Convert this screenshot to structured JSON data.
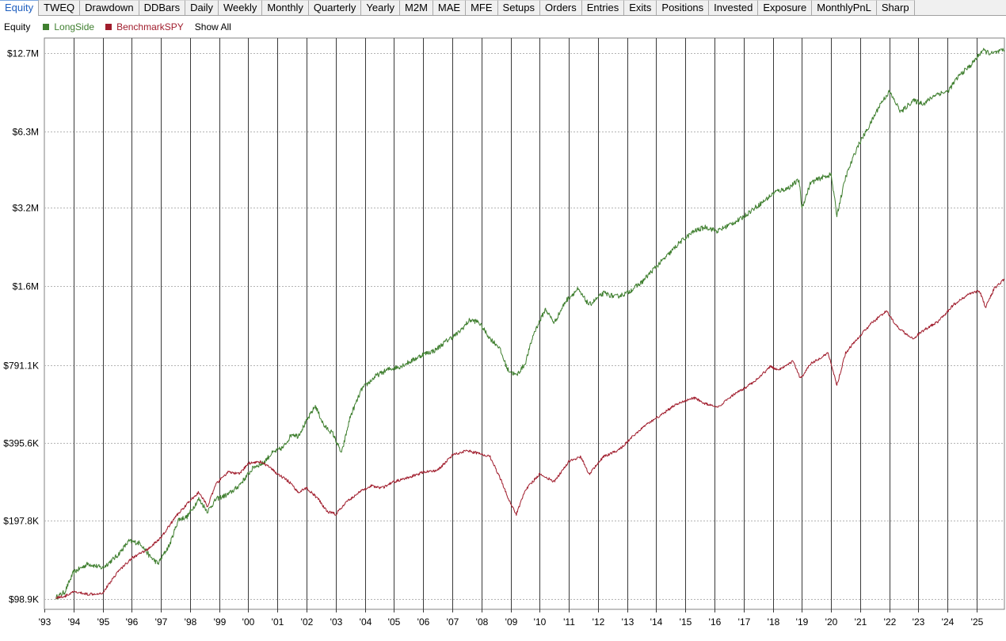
{
  "tabs": [
    {
      "label": "Equity",
      "active": true
    },
    {
      "label": "TWEQ"
    },
    {
      "label": "Drawdown"
    },
    {
      "label": "DDBars"
    },
    {
      "label": "Daily"
    },
    {
      "label": "Weekly"
    },
    {
      "label": "Monthly"
    },
    {
      "label": "Quarterly"
    },
    {
      "label": "Yearly"
    },
    {
      "label": "M2M"
    },
    {
      "label": "MAE"
    },
    {
      "label": "MFE"
    },
    {
      "label": "Setups"
    },
    {
      "label": "Orders"
    },
    {
      "label": "Entries"
    },
    {
      "label": "Exits"
    },
    {
      "label": "Positions"
    },
    {
      "label": "Invested"
    },
    {
      "label": "Exposure"
    },
    {
      "label": "MonthlyPnL"
    },
    {
      "label": "Sharp"
    }
  ],
  "legend": {
    "title": "Equity",
    "items": [
      {
        "label": "LongSide",
        "color": "#3f7f2f"
      },
      {
        "label": "BenchmarkSPY",
        "color": "#a01c2c"
      }
    ],
    "show_all": "Show All"
  },
  "chart_data": {
    "type": "line",
    "yscale": "log",
    "ylim": [
      90000,
      14500000
    ],
    "xlim": [
      1993.0,
      2025.95
    ],
    "yticks": [
      {
        "value": 98900,
        "label": "$98.9K"
      },
      {
        "value": 197800,
        "label": "$197.8K"
      },
      {
        "value": 395600,
        "label": "$395.6K"
      },
      {
        "value": 791100,
        "label": "$791.1K"
      },
      {
        "value": 1600000,
        "label": "$1.6M"
      },
      {
        "value": 3200000,
        "label": "$3.2M"
      },
      {
        "value": 6300000,
        "label": "$6.3M"
      },
      {
        "value": 12700000,
        "label": "$12.7M"
      }
    ],
    "xticks": [
      {
        "value": 1993,
        "label": "'93"
      },
      {
        "value": 1994,
        "label": "'94"
      },
      {
        "value": 1995,
        "label": "'95"
      },
      {
        "value": 1996,
        "label": "'96"
      },
      {
        "value": 1997,
        "label": "'97"
      },
      {
        "value": 1998,
        "label": "'98"
      },
      {
        "value": 1999,
        "label": "'99"
      },
      {
        "value": 2000,
        "label": "'00"
      },
      {
        "value": 2001,
        "label": "'01"
      },
      {
        "value": 2002,
        "label": "'02"
      },
      {
        "value": 2003,
        "label": "'03"
      },
      {
        "value": 2004,
        "label": "'04"
      },
      {
        "value": 2005,
        "label": "'05"
      },
      {
        "value": 2006,
        "label": "'06"
      },
      {
        "value": 2007,
        "label": "'07"
      },
      {
        "value": 2008,
        "label": "'08"
      },
      {
        "value": 2009,
        "label": "'09"
      },
      {
        "value": 2010,
        "label": "'10"
      },
      {
        "value": 2011,
        "label": "'11"
      },
      {
        "value": 2012,
        "label": "'12"
      },
      {
        "value": 2013,
        "label": "'13"
      },
      {
        "value": 2014,
        "label": "'14"
      },
      {
        "value": 2015,
        "label": "'15"
      },
      {
        "value": 2016,
        "label": "'16"
      },
      {
        "value": 2017,
        "label": "'17"
      },
      {
        "value": 2018,
        "label": "'18"
      },
      {
        "value": 2019,
        "label": "'19"
      },
      {
        "value": 2020,
        "label": "'20"
      },
      {
        "value": 2021,
        "label": "'21"
      },
      {
        "value": 2022,
        "label": "'22"
      },
      {
        "value": 2023,
        "label": "'23"
      },
      {
        "value": 2024,
        "label": "'24"
      },
      {
        "value": 2025,
        "label": "'25"
      }
    ],
    "series": [
      {
        "name": "LongSide",
        "color": "#3f7f2f",
        "points": [
          [
            1993.4,
            100000
          ],
          [
            1993.7,
            105000
          ],
          [
            1994.0,
            125000
          ],
          [
            1994.5,
            135000
          ],
          [
            1995.0,
            130000
          ],
          [
            1995.5,
            145000
          ],
          [
            1995.9,
            165000
          ],
          [
            1996.3,
            162000
          ],
          [
            1996.6,
            145000
          ],
          [
            1996.9,
            135000
          ],
          [
            1997.3,
            160000
          ],
          [
            1997.6,
            200000
          ],
          [
            1997.9,
            205000
          ],
          [
            1998.3,
            240000
          ],
          [
            1998.6,
            215000
          ],
          [
            1998.9,
            240000
          ],
          [
            1999.3,
            250000
          ],
          [
            1999.6,
            265000
          ],
          [
            1999.9,
            290000
          ],
          [
            2000.2,
            320000
          ],
          [
            2000.5,
            330000
          ],
          [
            2000.8,
            360000
          ],
          [
            2001.2,
            380000
          ],
          [
            2001.5,
            430000
          ],
          [
            2001.7,
            420000
          ],
          [
            2002.0,
            480000
          ],
          [
            2002.3,
            550000
          ],
          [
            2002.6,
            460000
          ],
          [
            2002.9,
            430000
          ],
          [
            2003.2,
            360000
          ],
          [
            2003.5,
            500000
          ],
          [
            2003.9,
            640000
          ],
          [
            2004.4,
            720000
          ],
          [
            2004.8,
            760000
          ],
          [
            2005.2,
            780000
          ],
          [
            2005.6,
            820000
          ],
          [
            2006.0,
            870000
          ],
          [
            2006.4,
            900000
          ],
          [
            2006.8,
            980000
          ],
          [
            2007.2,
            1050000
          ],
          [
            2007.6,
            1180000
          ],
          [
            2007.9,
            1160000
          ],
          [
            2008.3,
            1000000
          ],
          [
            2008.6,
            930000
          ],
          [
            2008.9,
            760000
          ],
          [
            2009.2,
            720000
          ],
          [
            2009.5,
            800000
          ],
          [
            2009.8,
            1050000
          ],
          [
            2010.2,
            1300000
          ],
          [
            2010.5,
            1150000
          ],
          [
            2010.9,
            1400000
          ],
          [
            2011.3,
            1550000
          ],
          [
            2011.7,
            1350000
          ],
          [
            2012.2,
            1500000
          ],
          [
            2012.6,
            1450000
          ],
          [
            2013.0,
            1500000
          ],
          [
            2013.5,
            1650000
          ],
          [
            2013.9,
            1850000
          ],
          [
            2014.4,
            2100000
          ],
          [
            2014.8,
            2350000
          ],
          [
            2015.3,
            2600000
          ],
          [
            2015.7,
            2700000
          ],
          [
            2016.1,
            2600000
          ],
          [
            2016.5,
            2750000
          ],
          [
            2016.9,
            2900000
          ],
          [
            2017.3,
            3150000
          ],
          [
            2017.7,
            3400000
          ],
          [
            2018.1,
            3700000
          ],
          [
            2018.5,
            3800000
          ],
          [
            2018.9,
            4100000
          ],
          [
            2019.0,
            3200000
          ],
          [
            2019.3,
            4000000
          ],
          [
            2019.7,
            4200000
          ],
          [
            2020.0,
            4300000
          ],
          [
            2020.2,
            3000000
          ],
          [
            2020.5,
            4200000
          ],
          [
            2020.9,
            5500000
          ],
          [
            2021.3,
            6600000
          ],
          [
            2021.7,
            8100000
          ],
          [
            2022.0,
            9000000
          ],
          [
            2022.4,
            7500000
          ],
          [
            2022.8,
            8300000
          ],
          [
            2023.2,
            8100000
          ],
          [
            2023.6,
            8800000
          ],
          [
            2024.0,
            9000000
          ],
          [
            2024.4,
            10400000
          ],
          [
            2024.8,
            11400000
          ],
          [
            2025.2,
            13000000
          ],
          [
            2025.5,
            12600000
          ],
          [
            2025.95,
            13000000
          ]
        ]
      },
      {
        "name": "BenchmarkSPY",
        "color": "#a01c2c",
        "points": [
          [
            1993.4,
            100000
          ],
          [
            1993.7,
            101000
          ],
          [
            1994.0,
            105000
          ],
          [
            1994.5,
            103000
          ],
          [
            1995.0,
            104000
          ],
          [
            1995.5,
            125000
          ],
          [
            1996.0,
            142000
          ],
          [
            1996.5,
            152000
          ],
          [
            1997.0,
            170000
          ],
          [
            1997.5,
            205000
          ],
          [
            1997.9,
            230000
          ],
          [
            1998.3,
            255000
          ],
          [
            1998.6,
            225000
          ],
          [
            1998.9,
            275000
          ],
          [
            1999.3,
            305000
          ],
          [
            1999.7,
            300000
          ],
          [
            2000.0,
            330000
          ],
          [
            2000.4,
            335000
          ],
          [
            2000.7,
            320000
          ],
          [
            2001.0,
            300000
          ],
          [
            2001.4,
            280000
          ],
          [
            2001.7,
            255000
          ],
          [
            2002.0,
            265000
          ],
          [
            2002.4,
            240000
          ],
          [
            2002.7,
            215000
          ],
          [
            2003.0,
            210000
          ],
          [
            2003.4,
            235000
          ],
          [
            2003.8,
            255000
          ],
          [
            2004.2,
            270000
          ],
          [
            2004.6,
            265000
          ],
          [
            2005.0,
            280000
          ],
          [
            2005.5,
            290000
          ],
          [
            2006.0,
            305000
          ],
          [
            2006.5,
            310000
          ],
          [
            2007.0,
            355000
          ],
          [
            2007.5,
            370000
          ],
          [
            2007.9,
            360000
          ],
          [
            2008.3,
            350000
          ],
          [
            2008.7,
            280000
          ],
          [
            2009.0,
            230000
          ],
          [
            2009.2,
            210000
          ],
          [
            2009.5,
            260000
          ],
          [
            2010.0,
            300000
          ],
          [
            2010.5,
            280000
          ],
          [
            2011.0,
            335000
          ],
          [
            2011.4,
            350000
          ],
          [
            2011.7,
            300000
          ],
          [
            2012.2,
            350000
          ],
          [
            2012.7,
            370000
          ],
          [
            2013.2,
            420000
          ],
          [
            2013.7,
            470000
          ],
          [
            2014.2,
            510000
          ],
          [
            2014.7,
            560000
          ],
          [
            2015.3,
            590000
          ],
          [
            2015.7,
            560000
          ],
          [
            2016.1,
            540000
          ],
          [
            2016.6,
            600000
          ],
          [
            2017.0,
            640000
          ],
          [
            2017.5,
            700000
          ],
          [
            2017.9,
            780000
          ],
          [
            2018.2,
            760000
          ],
          [
            2018.7,
            820000
          ],
          [
            2018.95,
            700000
          ],
          [
            2019.3,
            800000
          ],
          [
            2019.9,
            880000
          ],
          [
            2020.2,
            660000
          ],
          [
            2020.5,
            880000
          ],
          [
            2020.9,
            1000000
          ],
          [
            2021.4,
            1150000
          ],
          [
            2021.9,
            1280000
          ],
          [
            2022.3,
            1100000
          ],
          [
            2022.8,
            1000000
          ],
          [
            2023.2,
            1080000
          ],
          [
            2023.7,
            1170000
          ],
          [
            2024.2,
            1350000
          ],
          [
            2024.7,
            1480000
          ],
          [
            2025.1,
            1530000
          ],
          [
            2025.3,
            1320000
          ],
          [
            2025.6,
            1560000
          ],
          [
            2025.95,
            1700000
          ]
        ]
      }
    ]
  }
}
